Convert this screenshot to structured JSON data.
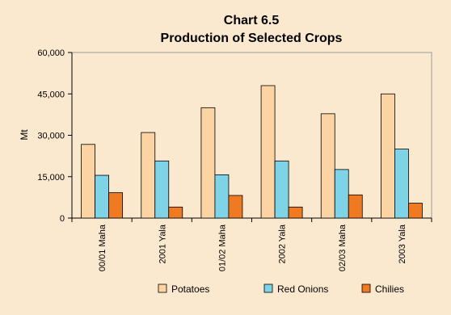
{
  "chart_data": {
    "type": "bar",
    "title": "Chart 6.5",
    "subtitle": "Production of Selected Crops",
    "xlabel": "",
    "ylabel": "Mt",
    "ylim": [
      0,
      60000
    ],
    "yticks": [
      "0",
      "15,000",
      "30,000",
      "45,000",
      "60,000"
    ],
    "ytick_values": [
      0,
      15000,
      30000,
      45000,
      60000
    ],
    "categories": [
      "00/01 Maha",
      "2001 Yala",
      "01/02 Maha",
      "2002 Yala",
      "02/03 Maha",
      "2003 Yala"
    ],
    "series": [
      {
        "name": "Potatoes",
        "color": "#fcd4a4",
        "values": [
          26700,
          31000,
          40000,
          48000,
          37800,
          45000
        ]
      },
      {
        "name": "Red Onions",
        "color": "#7fd3e6",
        "values": [
          15500,
          20700,
          15700,
          20700,
          17600,
          25000
        ]
      },
      {
        "name": "Chilies",
        "color": "#f07a22",
        "values": [
          9200,
          4000,
          8200,
          4000,
          8400,
          5400
        ]
      }
    ],
    "grid": false,
    "legend_position": "bottom",
    "background": "#fbe9cf",
    "plot_background": "#fbe9cf"
  }
}
